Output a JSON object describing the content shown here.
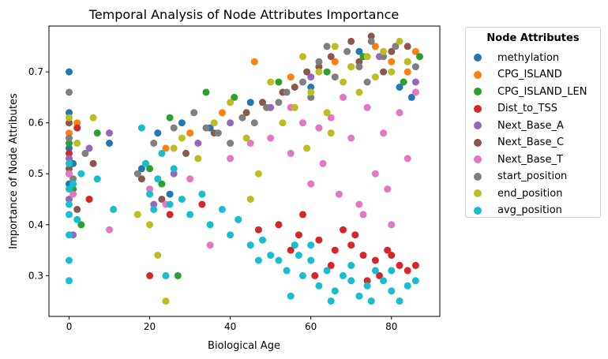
{
  "chart_data": {
    "type": "scatter",
    "title": "Temporal Analysis of Node Attributes Importance",
    "xlabel": "Biological Age",
    "ylabel": "Importance of Node Attributes",
    "xlim": [
      -5,
      92
    ],
    "ylim": [
      0.22,
      0.79
    ],
    "xticks": [
      0,
      20,
      40,
      60,
      80
    ],
    "yticks": [
      0.3,
      0.4,
      0.5,
      0.6,
      0.7
    ],
    "grid": false,
    "legend": {
      "title": "Node Attributes",
      "placement": "outside-right"
    },
    "series": [
      {
        "name": "methylation",
        "color": "#1f77b4",
        "points": [
          [
            0,
            0.7
          ],
          [
            0,
            0.62
          ],
          [
            0,
            0.55
          ],
          [
            0,
            0.48
          ],
          [
            1,
            0.52
          ],
          [
            10,
            0.56
          ],
          [
            18,
            0.51
          ],
          [
            22,
            0.58
          ],
          [
            25,
            0.46
          ],
          [
            28,
            0.6
          ],
          [
            35,
            0.59
          ],
          [
            45,
            0.64
          ],
          [
            60,
            0.67
          ],
          [
            72,
            0.74
          ],
          [
            82,
            0.67
          ],
          [
            85,
            0.65
          ]
        ]
      },
      {
        "name": "CPG_ISLAND",
        "color": "#ff7f0e",
        "points": [
          [
            0,
            0.58
          ],
          [
            0,
            0.5
          ],
          [
            2,
            0.6
          ],
          [
            5,
            0.45
          ],
          [
            19,
            0.52
          ],
          [
            24,
            0.55
          ],
          [
            30,
            0.58
          ],
          [
            38,
            0.62
          ],
          [
            46,
            0.72
          ],
          [
            55,
            0.69
          ],
          [
            66,
            0.72
          ],
          [
            76,
            0.75
          ],
          [
            80,
            0.72
          ],
          [
            86,
            0.74
          ],
          [
            84,
            0.7
          ]
        ]
      },
      {
        "name": "CPG_ISLAND_LEN",
        "color": "#2ca02c",
        "points": [
          [
            0,
            0.56
          ],
          [
            1,
            0.47
          ],
          [
            3,
            0.4
          ],
          [
            7,
            0.58
          ],
          [
            20,
            0.51
          ],
          [
            23,
            0.48
          ],
          [
            25,
            0.61
          ],
          [
            27,
            0.3
          ],
          [
            34,
            0.66
          ],
          [
            41,
            0.65
          ],
          [
            52,
            0.68
          ],
          [
            64,
            0.7
          ],
          [
            73,
            0.73
          ],
          [
            83,
            0.68
          ],
          [
            87,
            0.73
          ]
        ]
      },
      {
        "name": "Dist_to_TSS",
        "color": "#d62728",
        "points": [
          [
            0,
            0.54
          ],
          [
            2,
            0.59
          ],
          [
            5,
            0.45
          ],
          [
            20,
            0.3
          ],
          [
            25,
            0.42
          ],
          [
            33,
            0.44
          ],
          [
            42,
            0.41
          ],
          [
            47,
            0.39
          ],
          [
            52,
            0.4
          ],
          [
            55,
            0.35
          ],
          [
            58,
            0.42
          ],
          [
            62,
            0.37
          ],
          [
            65,
            0.32
          ],
          [
            68,
            0.39
          ],
          [
            70,
            0.36
          ],
          [
            73,
            0.34
          ],
          [
            76,
            0.33
          ],
          [
            79,
            0.35
          ],
          [
            82,
            0.32
          ],
          [
            84,
            0.31
          ],
          [
            86,
            0.32
          ],
          [
            61,
            0.3
          ],
          [
            74,
            0.29
          ],
          [
            66,
            0.35
          ],
          [
            71,
            0.38
          ],
          [
            77,
            0.3
          ],
          [
            57,
            0.38
          ],
          [
            80,
            0.34
          ]
        ]
      },
      {
        "name": "Next_Base_A",
        "color": "#9467bd",
        "points": [
          [
            0,
            0.53
          ],
          [
            0,
            0.45
          ],
          [
            1,
            0.38
          ],
          [
            5,
            0.55
          ],
          [
            10,
            0.58
          ],
          [
            21,
            0.44
          ],
          [
            26,
            0.5
          ],
          [
            32,
            0.56
          ],
          [
            40,
            0.6
          ],
          [
            50,
            0.63
          ],
          [
            60,
            0.69
          ],
          [
            70,
            0.71
          ],
          [
            77,
            0.73
          ],
          [
            86,
            0.68
          ]
        ]
      },
      {
        "name": "Next_Base_C",
        "color": "#8c564b",
        "points": [
          [
            0,
            0.51
          ],
          [
            0,
            0.6
          ],
          [
            2,
            0.43
          ],
          [
            6,
            0.52
          ],
          [
            18,
            0.49
          ],
          [
            23,
            0.45
          ],
          [
            29,
            0.54
          ],
          [
            36,
            0.58
          ],
          [
            44,
            0.62
          ],
          [
            53,
            0.66
          ],
          [
            59,
            0.7
          ],
          [
            65,
            0.73
          ],
          [
            70,
            0.76
          ],
          [
            75,
            0.77
          ],
          [
            80,
            0.74
          ],
          [
            84,
            0.75
          ],
          [
            48,
            0.64
          ],
          [
            56,
            0.67
          ],
          [
            62,
            0.71
          ],
          [
            72,
            0.72
          ],
          [
            78,
            0.7
          ]
        ]
      },
      {
        "name": "Next_Base_T",
        "color": "#e377c2",
        "points": [
          [
            0,
            0.5
          ],
          [
            1,
            0.46
          ],
          [
            10,
            0.39
          ],
          [
            20,
            0.47
          ],
          [
            24,
            0.44
          ],
          [
            30,
            0.49
          ],
          [
            35,
            0.36
          ],
          [
            40,
            0.53
          ],
          [
            45,
            0.56
          ],
          [
            50,
            0.57
          ],
          [
            55,
            0.54
          ],
          [
            58,
            0.6
          ],
          [
            60,
            0.48
          ],
          [
            63,
            0.52
          ],
          [
            65,
            0.61
          ],
          [
            67,
            0.46
          ],
          [
            70,
            0.57
          ],
          [
            72,
            0.44
          ],
          [
            74,
            0.63
          ],
          [
            76,
            0.5
          ],
          [
            78,
            0.58
          ],
          [
            80,
            0.4
          ],
          [
            82,
            0.62
          ],
          [
            84,
            0.53
          ],
          [
            86,
            0.66
          ],
          [
            68,
            0.65
          ],
          [
            62,
            0.59
          ],
          [
            73,
            0.42
          ],
          [
            79,
            0.47
          ],
          [
            55,
            0.63
          ]
        ]
      },
      {
        "name": "start_position",
        "color": "#7f7f7f",
        "points": [
          [
            0,
            0.66
          ],
          [
            0,
            0.57
          ],
          [
            1,
            0.49
          ],
          [
            4,
            0.54
          ],
          [
            17,
            0.5
          ],
          [
            21,
            0.56
          ],
          [
            26,
            0.59
          ],
          [
            31,
            0.62
          ],
          [
            37,
            0.58
          ],
          [
            43,
            0.61
          ],
          [
            49,
            0.63
          ],
          [
            54,
            0.66
          ],
          [
            58,
            0.68
          ],
          [
            62,
            0.72
          ],
          [
            66,
            0.69
          ],
          [
            69,
            0.74
          ],
          [
            72,
            0.71
          ],
          [
            75,
            0.76
          ],
          [
            78,
            0.73
          ],
          [
            81,
            0.75
          ],
          [
            84,
            0.72
          ],
          [
            86,
            0.71
          ],
          [
            46,
            0.6
          ],
          [
            52,
            0.64
          ],
          [
            64,
            0.75
          ],
          [
            74,
            0.68
          ],
          [
            60,
            0.65
          ],
          [
            40,
            0.56
          ],
          [
            34,
            0.59
          ]
        ]
      },
      {
        "name": "end_position",
        "color": "#bcbd22",
        "points": [
          [
            0,
            0.61
          ],
          [
            0,
            0.52
          ],
          [
            2,
            0.56
          ],
          [
            6,
            0.61
          ],
          [
            17,
            0.42
          ],
          [
            20,
            0.4
          ],
          [
            22,
            0.34
          ],
          [
            24,
            0.25
          ],
          [
            26,
            0.55
          ],
          [
            28,
            0.57
          ],
          [
            32,
            0.53
          ],
          [
            36,
            0.6
          ],
          [
            40,
            0.64
          ],
          [
            44,
            0.57
          ],
          [
            47,
            0.5
          ],
          [
            50,
            0.68
          ],
          [
            53,
            0.6
          ],
          [
            56,
            0.63
          ],
          [
            58,
            0.73
          ],
          [
            60,
            0.66
          ],
          [
            62,
            0.7
          ],
          [
            64,
            0.62
          ],
          [
            66,
            0.75
          ],
          [
            68,
            0.68
          ],
          [
            70,
            0.71
          ],
          [
            72,
            0.66
          ],
          [
            74,
            0.73
          ],
          [
            76,
            0.69
          ],
          [
            78,
            0.74
          ],
          [
            80,
            0.7
          ],
          [
            82,
            0.76
          ],
          [
            84,
            0.72
          ],
          [
            59,
            0.55
          ],
          [
            65,
            0.58
          ],
          [
            45,
            0.45
          ]
        ]
      },
      {
        "name": "avg_position",
        "color": "#17becf",
        "points": [
          [
            0,
            0.29
          ],
          [
            0,
            0.33
          ],
          [
            0,
            0.38
          ],
          [
            0,
            0.42
          ],
          [
            0,
            0.47
          ],
          [
            0,
            0.52
          ],
          [
            0,
            0.44
          ],
          [
            1,
            0.48
          ],
          [
            2,
            0.41
          ],
          [
            3,
            0.5
          ],
          [
            7,
            0.49
          ],
          [
            11,
            0.43
          ],
          [
            18,
            0.59
          ],
          [
            19,
            0.52
          ],
          [
            20,
            0.46
          ],
          [
            21,
            0.43
          ],
          [
            22,
            0.49
          ],
          [
            23,
            0.54
          ],
          [
            24,
            0.3
          ],
          [
            25,
            0.44
          ],
          [
            26,
            0.51
          ],
          [
            28,
            0.45
          ],
          [
            30,
            0.42
          ],
          [
            33,
            0.46
          ],
          [
            35,
            0.4
          ],
          [
            38,
            0.43
          ],
          [
            40,
            0.38
          ],
          [
            42,
            0.41
          ],
          [
            45,
            0.36
          ],
          [
            48,
            0.37
          ],
          [
            50,
            0.34
          ],
          [
            52,
            0.33
          ],
          [
            54,
            0.31
          ],
          [
            56,
            0.36
          ],
          [
            58,
            0.3
          ],
          [
            60,
            0.33
          ],
          [
            62,
            0.28
          ],
          [
            64,
            0.31
          ],
          [
            66,
            0.27
          ],
          [
            68,
            0.3
          ],
          [
            70,
            0.29
          ],
          [
            72,
            0.26
          ],
          [
            74,
            0.28
          ],
          [
            76,
            0.31
          ],
          [
            78,
            0.29
          ],
          [
            80,
            0.27
          ],
          [
            82,
            0.25
          ],
          [
            84,
            0.28
          ],
          [
            86,
            0.29
          ],
          [
            55,
            0.26
          ],
          [
            65,
            0.25
          ],
          [
            75,
            0.25
          ],
          [
            60,
            0.36
          ],
          [
            70,
            0.32
          ],
          [
            80,
            0.31
          ],
          [
            47,
            0.33
          ],
          [
            57,
            0.34
          ]
        ]
      }
    ]
  }
}
